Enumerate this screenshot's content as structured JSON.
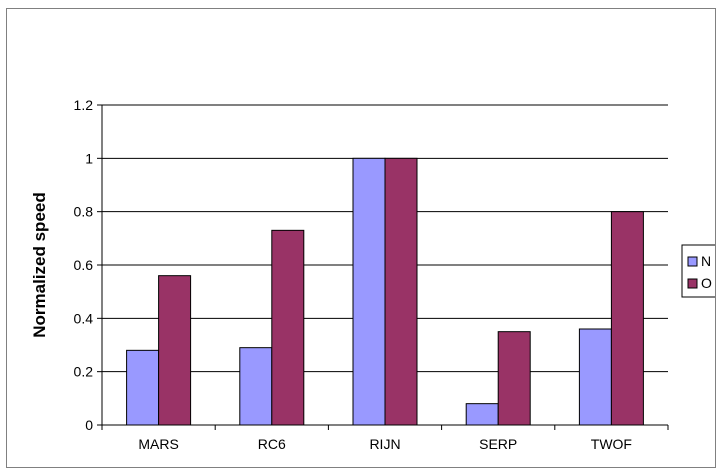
{
  "chart_data": {
    "type": "bar",
    "categories": [
      "MARS",
      "RC6",
      "RIJN",
      "SERP",
      "TWOF"
    ],
    "series": [
      {
        "name": "N",
        "values": [
          0.28,
          0.29,
          1.0,
          0.08,
          0.36
        ],
        "color": "#9999FF"
      },
      {
        "name": "O",
        "values": [
          0.56,
          0.73,
          1.0,
          0.35,
          0.8
        ],
        "color": "#993366"
      }
    ],
    "title": "",
    "xlabel": "",
    "ylabel": "Normalized speed",
    "ylim": [
      0,
      1.2
    ],
    "yticks": [
      "0",
      "0.2",
      "0.4",
      "0.6",
      "0.8",
      "1",
      "1.2"
    ],
    "grid": true,
    "legend": "right"
  }
}
